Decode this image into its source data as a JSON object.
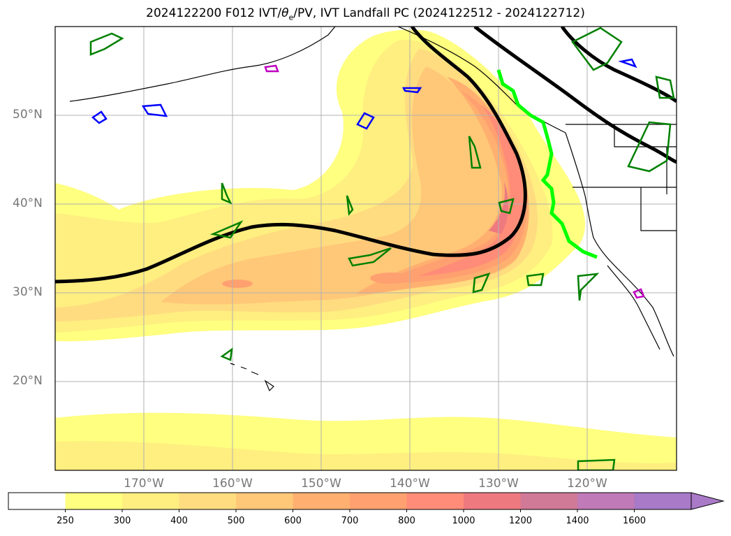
{
  "title": {
    "prefix": "2024122200 F012 IVT/",
    "symbol": "θ",
    "subscript": "e",
    "suffix": "/PV, IVT Landfall PC (2024122512 - 2024122712)"
  },
  "map": {
    "projection": "PlateCarree",
    "lon_range": [
      -180,
      -110
    ],
    "lat_range": [
      10,
      60
    ],
    "gridlines": true,
    "lat_labels": [
      "20°N",
      "30°N",
      "40°N",
      "50°N"
    ],
    "lon_labels": [
      "170°W",
      "160°W",
      "150°W",
      "140°W",
      "130°W",
      "120°W"
    ],
    "frame_color": "#000000",
    "grid_color": "#b0b0b0"
  },
  "layers": {
    "ivt_fill": "filled contours of integrated vapor transport (yellow–red)",
    "theta_e_pv": "thick black contour",
    "pv_contours": [
      "#008000",
      "#0000ff",
      "#c000c0"
    ],
    "landfall_line_color": "#00ff00"
  },
  "colorbar": {
    "extend": "max",
    "ticks": [
      "250",
      "300",
      "400",
      "500",
      "600",
      "700",
      "800",
      "1000",
      "1200",
      "1400",
      "1600"
    ],
    "colors": [
      "#ffffff",
      "#ffff80",
      "#ffee80",
      "#ffdc80",
      "#ffc878",
      "#ffb070",
      "#ffa070",
      "#ff8c78",
      "#ee7a80",
      "#d07a98",
      "#c07ab8",
      "#a87ac8"
    ]
  }
}
